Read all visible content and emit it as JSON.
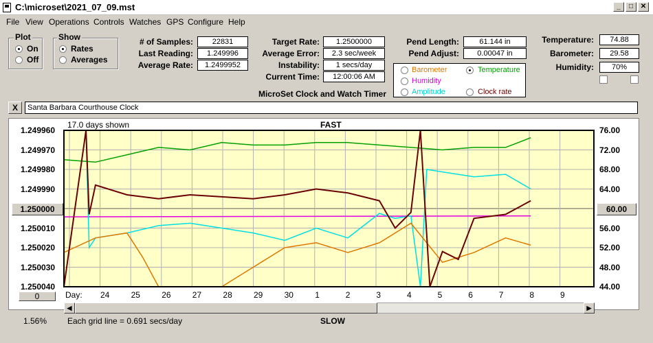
{
  "window": {
    "title": "C:\\microset\\2021_07_09.mst"
  },
  "menu": [
    "File",
    "View",
    "Operations",
    "Controls",
    "Watches",
    "GPS",
    "Configure",
    "Help"
  ],
  "plot_group": {
    "title": "Plot",
    "on": "On",
    "off": "Off",
    "selected": "On"
  },
  "show_group": {
    "title": "Show",
    "rates": "Rates",
    "averages": "Averages",
    "selected": "Rates"
  },
  "stats": {
    "samples_label": "# of Samples:",
    "samples": "22831",
    "last_label": "Last Reading:",
    "last": "1.249996",
    "avg_label": "Average Rate:",
    "avg": "1.2499952",
    "target_label": "Target Rate:",
    "target": "1.2500000",
    "error_label": "Average Error:",
    "error": "2.3 sec/week",
    "instab_label": "Instability:",
    "instab": "1 secs/day",
    "time_label": "Current Time:",
    "time": "12:00:06 AM",
    "pendlen_label": "Pend Length:",
    "pendlen": "61.144 in",
    "pendadj_label": "Pend Adjust:",
    "pendadj": "0.00047 in",
    "temp_label": "Temperature:",
    "temp": "74.88",
    "baro_label": "Barometer:",
    "baro": "29.58",
    "hum_label": "Humidity:",
    "hum": "70%"
  },
  "sensor_options": {
    "barometer": "Barometer",
    "temperature": "Temperature",
    "humidity": "Humidity",
    "amplitude": "Amplitude",
    "clockrate": "Clock rate",
    "selected": "Temperature"
  },
  "app_caption": "MicroSet Clock and Watch Timer",
  "clock_name": "Santa Barbara Courthouse Clock",
  "close_label": "X",
  "colors": {
    "rate": "#6b0000",
    "temperature": "#00a000",
    "humidity": "#e000e0",
    "amplitude": "#00e0e0",
    "barometer": "#e07800",
    "plot_bg": "#ffffc8"
  },
  "chart_data": {
    "type": "line",
    "top_label": "FAST",
    "bottom_label": "SLOW",
    "days_shown": "17.0 days shown",
    "grid_note": "Each grid line = 0.691 secs/day",
    "percent": "1.56%",
    "left_button": "1.250000",
    "right_button": "60.00",
    "bottom_button": "0",
    "x_axis_label": "Day:",
    "left_ticks": [
      "1.249960",
      "1.249970",
      "1.249980",
      "1.249990",
      "1.250000",
      "1.250010",
      "1.250020",
      "1.250030",
      "1.250040"
    ],
    "right_ticks": [
      "76.00",
      "72.00",
      "68.00",
      "64.00",
      "60.00",
      "56.00",
      "52.00",
      "48.00",
      "44.00"
    ],
    "day_ticks": [
      "24",
      "25",
      "26",
      "27",
      "28",
      "29",
      "30",
      "1",
      "2",
      "3",
      "4",
      "5",
      "6",
      "7",
      "8",
      "9"
    ],
    "left_range": [
      1.24996,
      1.25004
    ],
    "right_range": [
      44,
      76
    ],
    "series": [
      {
        "name": "Temperature",
        "color": "#00a000",
        "x": [
          0,
          1,
          2,
          3,
          4,
          5,
          6,
          7,
          8,
          9,
          10,
          11,
          12,
          13,
          14,
          14.8
        ],
        "y": [
          70,
          69.5,
          71,
          72.5,
          72,
          73.5,
          73,
          73,
          73.5,
          73.5,
          73,
          72.5,
          72,
          72.5,
          72.5,
          74.5
        ]
      },
      {
        "name": "Humidity",
        "color": "#e000e0",
        "x": [
          0,
          14.8
        ],
        "y": [
          58.3,
          58.5
        ]
      },
      {
        "name": "Amplitude",
        "color": "#00e0e0",
        "x": [
          0,
          0.7,
          0.8,
          1,
          2,
          3,
          4,
          5,
          6,
          7,
          8,
          9,
          10,
          10.5,
          11,
          11.3,
          11.5,
          12,
          13,
          14,
          14.8
        ],
        "y": [
          76,
          76,
          52,
          54,
          55,
          56.5,
          57,
          56,
          55,
          53.5,
          56,
          54,
          59,
          58,
          58.5,
          44,
          68,
          67.5,
          66.5,
          67,
          64
        ]
      },
      {
        "name": "Barometer",
        "color": "#e07800",
        "x": [
          0,
          1,
          2,
          2.5,
          3,
          4,
          5,
          6,
          7,
          8,
          9,
          10,
          11,
          12,
          13,
          14,
          14.8
        ],
        "y": [
          51,
          54,
          55,
          50,
          44,
          44,
          44,
          48,
          52,
          53,
          51,
          53,
          57,
          49,
          51,
          54,
          52.5
        ]
      },
      {
        "name": "Clock rate",
        "color": "#6b0000",
        "x": [
          0,
          0.7,
          0.8,
          1,
          2,
          3,
          4,
          5,
          6,
          7,
          8,
          9,
          10,
          10.5,
          11,
          11.3,
          11.6,
          12,
          12.5,
          13,
          14,
          14.8
        ],
        "y": [
          1.25004,
          1.24996,
          1.250003,
          1.249988,
          1.249993,
          1.249995,
          1.249993,
          1.249994,
          1.249995,
          1.249993,
          1.24999,
          1.249992,
          1.249996,
          1.25001,
          1.250002,
          1.24996,
          1.25004,
          1.250022,
          1.250026,
          1.250005,
          1.250003,
          1.249996
        ]
      }
    ]
  }
}
